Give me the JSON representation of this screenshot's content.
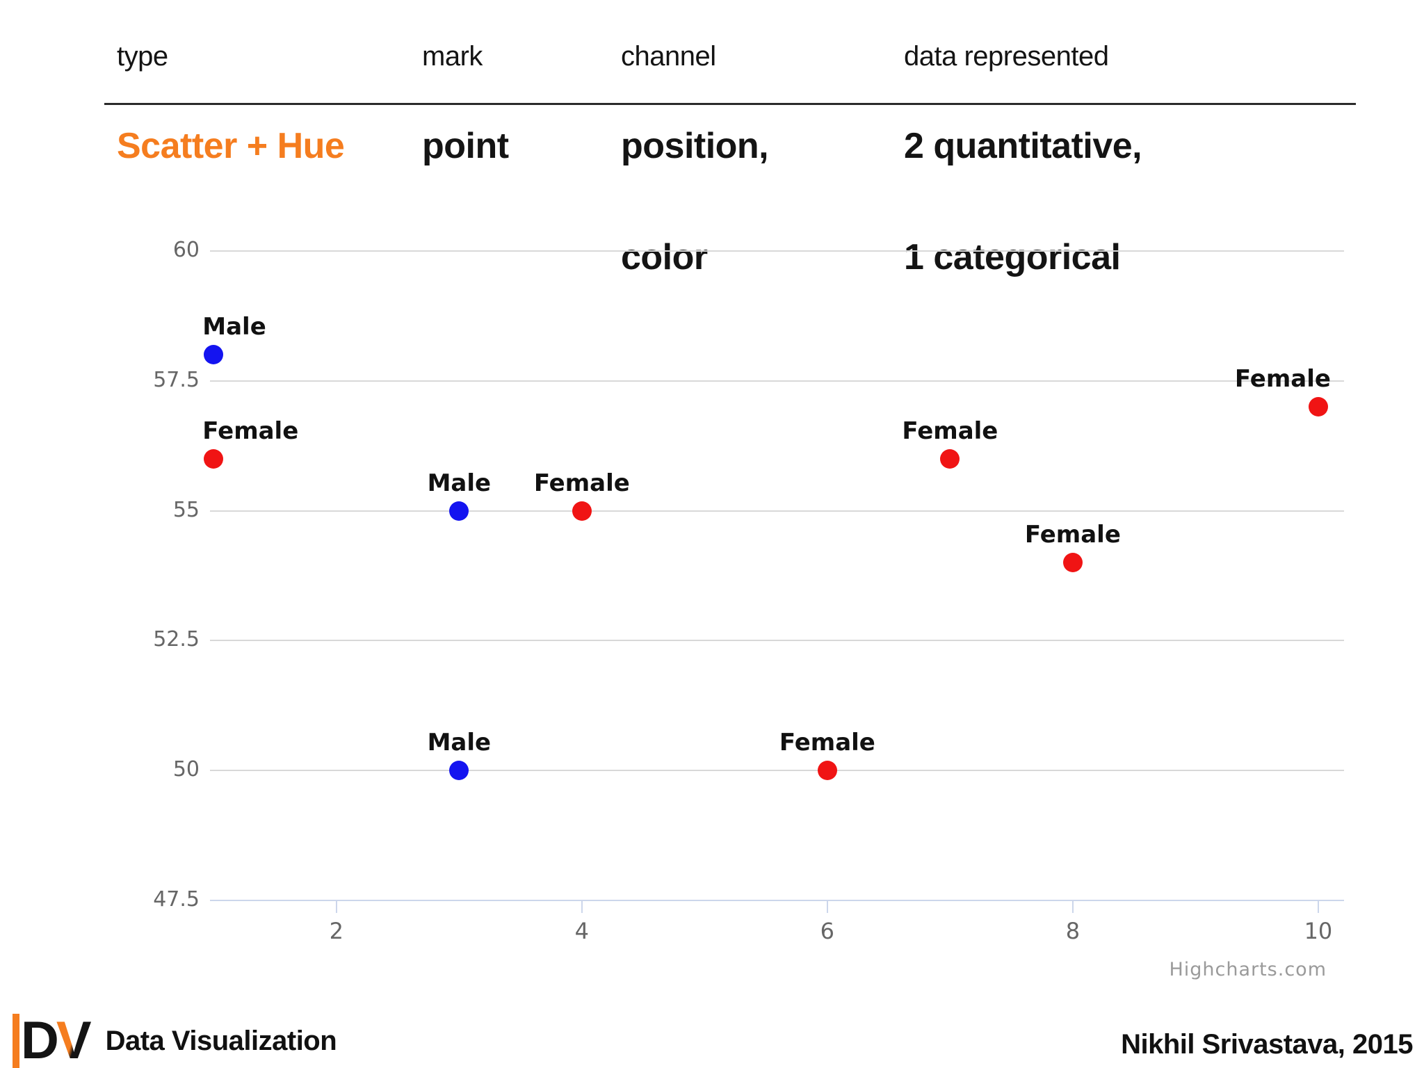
{
  "header": {
    "columns": [
      "type",
      "mark",
      "channel",
      "data represented"
    ],
    "row": {
      "type": "Scatter + Hue",
      "mark": "point",
      "channel_line1": "position,",
      "channel_line2": "color",
      "data_line1": "2 quantitative,",
      "data_line2": "1 categorical"
    },
    "accent_color": "#F57D1F"
  },
  "chart_data": {
    "type": "scatter",
    "title": "",
    "xlabel": "",
    "ylabel": "",
    "series": [
      {
        "name": "Male",
        "color": "#1414F0",
        "points": [
          {
            "x": 1,
            "y": 58
          },
          {
            "x": 3,
            "y": 55
          },
          {
            "x": 3,
            "y": 50
          }
        ]
      },
      {
        "name": "Female",
        "color": "#F01414",
        "points": [
          {
            "x": 1,
            "y": 56
          },
          {
            "x": 4,
            "y": 55
          },
          {
            "x": 6,
            "y": 50
          },
          {
            "x": 7,
            "y": 56
          },
          {
            "x": 8,
            "y": 54
          },
          {
            "x": 10,
            "y": 57
          }
        ]
      }
    ],
    "x_ticks": [
      2,
      4,
      6,
      8,
      10
    ],
    "y_ticks": [
      60,
      57.5,
      55,
      52.5,
      50,
      47.5
    ],
    "xlim": [
      0.97,
      10.21
    ],
    "ylim": [
      47.5,
      60
    ],
    "grid": true,
    "legend": "none (labels above points)",
    "point_label_source": "series name",
    "credit": "Highcharts.com",
    "colors": {
      "grid": "#d8d8d8",
      "axis": "#ccd6eb",
      "tick_label": "#666666"
    }
  },
  "footer": {
    "logo_d": "D",
    "logo_v": "V",
    "brand": "Data Visualization",
    "author": "Nikhil Srivastava, 2015"
  }
}
